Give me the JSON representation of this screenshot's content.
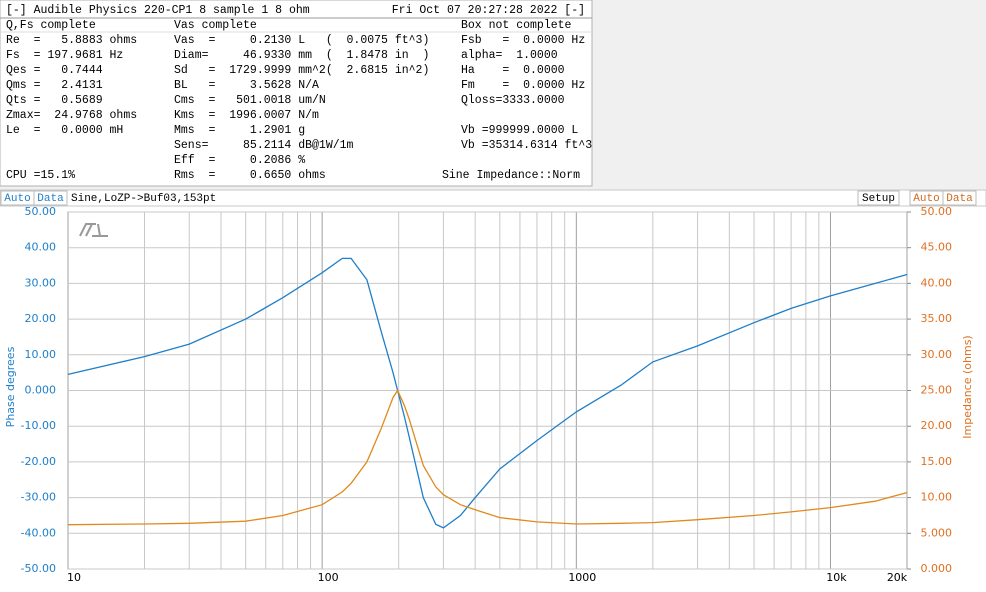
{
  "window": {
    "title": "[-] Audible Physics 220-CP1 8 sample 1 8 ohm",
    "datetime": "Fri Oct 07 20:27:28 2022 [-]"
  },
  "panel": {
    "columns": [
      {
        "header": "Q,Fs complete",
        "lines": [
          "Re  =   5.8883 ohms",
          "Fs  = 197.9681 Hz",
          "Qes =   0.7444",
          "Qms =   2.4131",
          "Qts =   0.5689",
          "Zmax=  24.9768 ohms",
          "Le  =   0.0000 mH",
          "CPU =15.1%"
        ]
      },
      {
        "header": "Vas complete",
        "lines": [
          "Vas  =     0.2130 L   (  0.0075 ft^3)",
          "Diam=     46.9330 mm  (  1.8478 in  )",
          "Sd   =  1729.9999 mm^2(  2.6815 in^2)",
          "BL   =     3.5628 N/A",
          "Cms  =   501.0018 um/N",
          "Kms  =  1996.0007 N/m",
          "Mms  =     1.2901 g",
          "Sens=     85.2114 dB@1W/1m",
          "Eff  =     0.2086 %",
          "Rms  =     0.6650 ohms"
        ]
      },
      {
        "header": "Box not complete",
        "lines": [
          "Fsb   =  0.0000 Hz",
          "alpha=  1.0000",
          "Ha    =  0.0000",
          "Fm    =  0.0000 Hz",
          "Qloss=3333.0000",
          "Vb =999999.0000 L",
          "Vb =35314.6314 ft^3",
          "Sine Impedance::Norm"
        ]
      }
    ]
  },
  "toolbar": {
    "left": [
      "Auto",
      "Data"
    ],
    "status": "Sine,LoZP->Buf03,153pt",
    "setup": "Setup",
    "right": [
      "Auto",
      "Data"
    ]
  },
  "chart_data": {
    "type": "line",
    "log_x": true,
    "grid": true,
    "y_label": "Phase degrees",
    "y2_label": "Impedance (ohms)",
    "x": [
      10,
      20,
      30,
      50,
      70,
      100,
      120,
      130,
      150,
      170,
      190,
      198,
      210,
      220,
      250,
      280,
      300,
      350,
      400,
      500,
      700,
      1000,
      1500,
      2000,
      3000,
      5000,
      7000,
      10000,
      15000,
      20000
    ],
    "series": [
      {
        "name": "Phase",
        "color": "#1f7fc8",
        "values": [
          4.5,
          9.5,
          13,
          20,
          26,
          33,
          37,
          37,
          31,
          17,
          5,
          0,
          -7,
          -13,
          -30,
          -37.5,
          -38.5,
          -35,
          -30,
          -22,
          -14,
          -6,
          1.5,
          8,
          12.5,
          19,
          23,
          26.5,
          30,
          32.5
        ]
      },
      {
        "name": "Impedance",
        "color": "#e08a1e",
        "axis": "y2",
        "values": [
          6.2,
          6.3,
          6.4,
          6.7,
          7.5,
          9,
          10.8,
          12,
          15,
          19.5,
          24,
          25,
          23,
          21,
          14.5,
          11.5,
          10.4,
          9,
          8.3,
          7.2,
          6.6,
          6.3,
          6.4,
          6.5,
          6.9,
          7.5,
          8,
          8.6,
          9.5,
          10.7
        ]
      }
    ],
    "xlim": [
      10,
      20000
    ],
    "xticks": [
      10,
      100,
      1000,
      {
        "value": 10000,
        "label": "10k"
      },
      {
        "value": 20000,
        "label": "20k"
      }
    ],
    "ylim": [
      -50,
      50
    ],
    "yticks": [
      {
        "value": -50,
        "label": "-50.00"
      },
      {
        "value": -40,
        "label": "-40.00"
      },
      {
        "value": -30,
        "label": "-30.00"
      },
      {
        "value": -20,
        "label": "-20.00"
      },
      {
        "value": -10,
        "label": "-10.00"
      },
      {
        "value": 0,
        "label": "0.000"
      },
      {
        "value": 10,
        "label": "10.00"
      },
      {
        "value": 20,
        "label": "20.00"
      },
      {
        "value": 30,
        "label": "30.00"
      },
      {
        "value": 40,
        "label": "40.00"
      },
      {
        "value": 50,
        "label": "50.00"
      }
    ],
    "y2lim": [
      0,
      50
    ],
    "y2ticks": [
      {
        "value": 0,
        "label": "0.000"
      },
      {
        "value": 5,
        "label": "5.000"
      },
      {
        "value": 10,
        "label": "10.00"
      },
      {
        "value": 15,
        "label": "15.00"
      },
      {
        "value": 20,
        "label": "20.00"
      },
      {
        "value": 25,
        "label": "25.00"
      },
      {
        "value": 30,
        "label": "30.00"
      },
      {
        "value": 35,
        "label": "35.00"
      },
      {
        "value": 40,
        "label": "40.00"
      },
      {
        "value": 45,
        "label": "45.00"
      },
      {
        "value": 50,
        "label": "50.00"
      }
    ]
  }
}
